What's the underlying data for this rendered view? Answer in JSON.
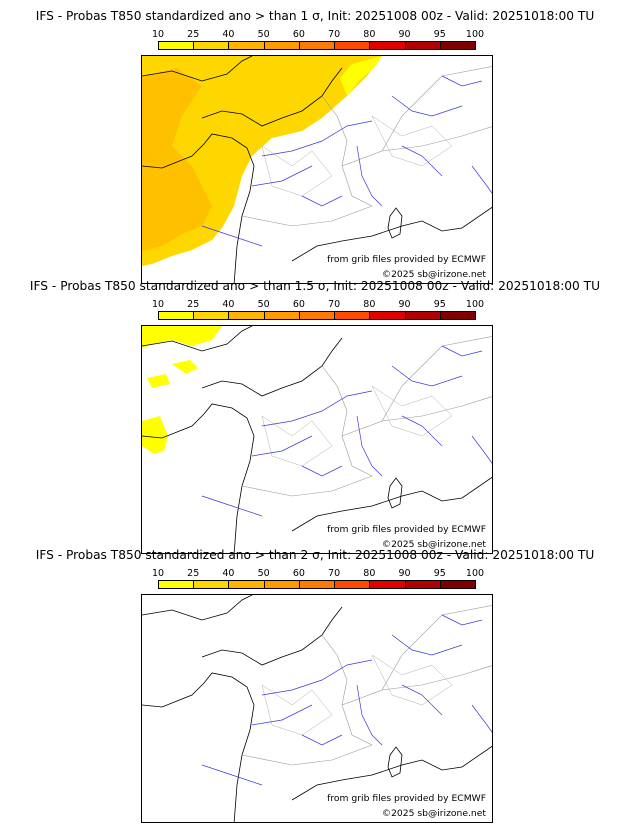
{
  "colorbar": {
    "ticks": [
      "10",
      "25",
      "40",
      "50",
      "60",
      "70",
      "80",
      "90",
      "95",
      "100"
    ],
    "colors": [
      "#ffff00",
      "#ffd700",
      "#ffb400",
      "#ff9a00",
      "#ff7a00",
      "#ff4b00",
      "#e00000",
      "#b00000",
      "#800000"
    ]
  },
  "map_colors": {
    "light_prob": "#ffd700",
    "mid_prob": "#ffc000",
    "low_prob": "#ffff00",
    "rivers": "#3a3adc",
    "borders": "#9a9a9a",
    "coast": "#000000"
  },
  "panels": [
    {
      "title": "IFS - Probas T850  standardized ano > than 1 σ, Init: 20251008 00z - Valid: 20251018:00 TU",
      "credit_source": "from grib files provided by ECMWF",
      "credit_copyright": "©2025 sb@irizone.net",
      "anomaly_threshold": "1 σ"
    },
    {
      "title": "IFS - Probas T850  standardized ano > than 1.5 σ, Init: 20251008 00z - Valid: 20251018:00 TU",
      "credit_source": "from grib files provided by ECMWF",
      "credit_copyright": "©2025 sb@irizone.net",
      "anomaly_threshold": "1.5 σ"
    },
    {
      "title": "IFS - Probas T850  standardized ano > than 2 σ, Init: 20251008 00z - Valid: 20251018:00 TU",
      "credit_source": "from grib files provided by ECMWF",
      "credit_copyright": "©2025 sb@irizone.net",
      "anomaly_threshold": "2 σ"
    }
  ]
}
